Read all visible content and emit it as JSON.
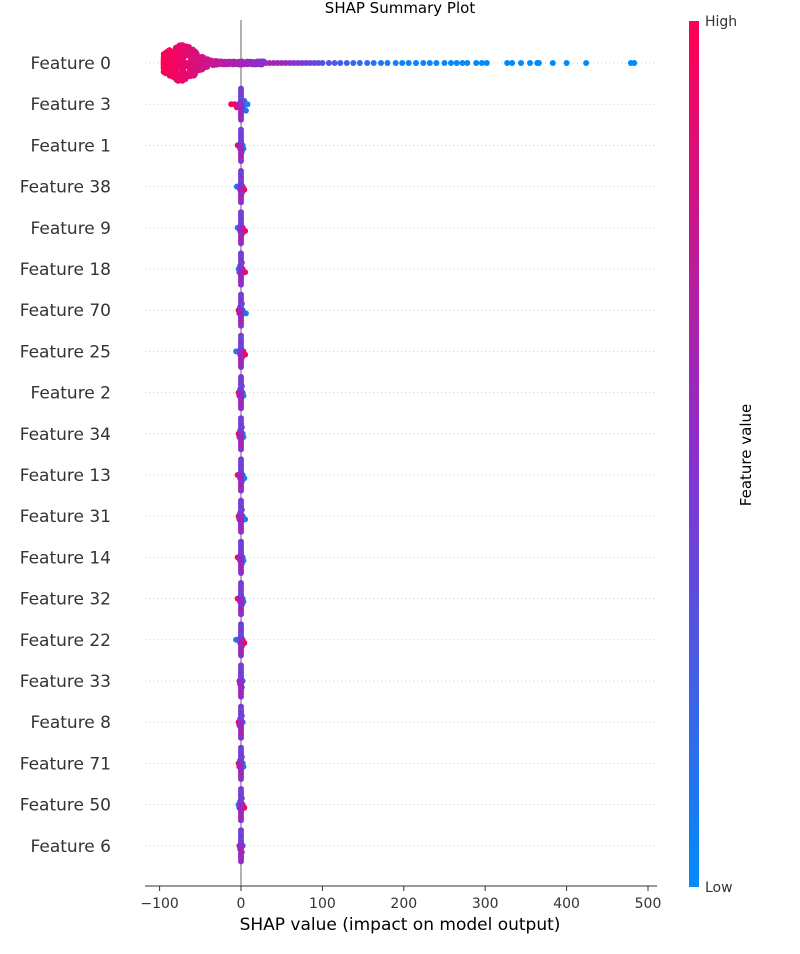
{
  "chart_data": {
    "type": "scatter",
    "subtype": "shap-beeswarm",
    "title": "SHAP Summary Plot",
    "xlabel": "SHAP value (impact on model output)",
    "ylabel": "",
    "xlim": [
      -115,
      515
    ],
    "xticks": [
      -100,
      0,
      100,
      200,
      300,
      400,
      500
    ],
    "xtick_labels": [
      "−100",
      "0",
      "100",
      "200",
      "300",
      "400",
      "500"
    ],
    "grid": false,
    "zero_line": true,
    "colorbar": {
      "title": "Feature value",
      "high_label": "High",
      "low_label": "Low",
      "high_color": "#ff0052",
      "low_color": "#008bfb"
    },
    "features": [
      {
        "name": "Feature 0",
        "points": [
          {
            "x": -75,
            "f": 1.0
          },
          {
            "x": -72,
            "f": 0.98
          },
          {
            "x": -68,
            "f": 0.97
          },
          {
            "x": -80,
            "f": 1.0
          },
          {
            "x": -85,
            "f": 0.99
          },
          {
            "x": -90,
            "f": 1.0
          },
          {
            "x": -65,
            "f": 0.96
          },
          {
            "x": -60,
            "f": 0.95
          },
          {
            "x": -55,
            "f": 0.94
          },
          {
            "x": -50,
            "f": 0.93
          },
          {
            "x": -45,
            "f": 0.92
          },
          {
            "x": -40,
            "f": 0.9
          },
          {
            "x": -35,
            "f": 0.89
          },
          {
            "x": -30,
            "f": 0.88
          },
          {
            "x": -25,
            "f": 0.87
          },
          {
            "x": -20,
            "f": 0.86
          },
          {
            "x": -15,
            "f": 0.84
          },
          {
            "x": -10,
            "f": 0.83
          },
          {
            "x": -5,
            "f": 0.82
          },
          {
            "x": 0,
            "f": 0.8
          },
          {
            "x": 5,
            "f": 0.78
          },
          {
            "x": 10,
            "f": 0.76
          },
          {
            "x": 15,
            "f": 0.74
          },
          {
            "x": 20,
            "f": 0.72
          },
          {
            "x": 25,
            "f": 0.7
          },
          {
            "x": 30,
            "f": 0.67
          },
          {
            "x": 35,
            "f": 0.65
          },
          {
            "x": 40,
            "f": 0.63
          },
          {
            "x": 45,
            "f": 0.6
          },
          {
            "x": 50,
            "f": 0.58
          },
          {
            "x": 55,
            "f": 0.55
          },
          {
            "x": 60,
            "f": 0.52
          },
          {
            "x": 65,
            "f": 0.5
          },
          {
            "x": 70,
            "f": 0.47
          },
          {
            "x": 75,
            "f": 0.45
          },
          {
            "x": 80,
            "f": 0.42
          },
          {
            "x": 85,
            "f": 0.4
          },
          {
            "x": 90,
            "f": 0.38
          },
          {
            "x": 95,
            "f": 0.35
          },
          {
            "x": 100,
            "f": 0.32
          },
          {
            "x": 108,
            "f": 0.3
          },
          {
            "x": 115,
            "f": 0.27
          },
          {
            "x": 122,
            "f": 0.25
          },
          {
            "x": 130,
            "f": 0.22
          },
          {
            "x": 138,
            "f": 0.2
          },
          {
            "x": 146,
            "f": 0.18
          },
          {
            "x": 155,
            "f": 0.15
          },
          {
            "x": 163,
            "f": 0.13
          },
          {
            "x": 172,
            "f": 0.1
          },
          {
            "x": 180,
            "f": 0.08
          },
          {
            "x": 190,
            "f": 0.06
          },
          {
            "x": 198,
            "f": 0.05
          },
          {
            "x": 206,
            "f": 0.04
          },
          {
            "x": 215,
            "f": 0.03
          },
          {
            "x": 224,
            "f": 0.03
          },
          {
            "x": 232,
            "f": 0.02
          },
          {
            "x": 240,
            "f": 0.02
          },
          {
            "x": 250,
            "f": 0.02
          },
          {
            "x": 258,
            "f": 0.01
          },
          {
            "x": 265,
            "f": 0.01
          },
          {
            "x": 272,
            "f": 0.01
          },
          {
            "x": 278,
            "f": 0.0
          },
          {
            "x": 289,
            "f": 0.0
          },
          {
            "x": 296,
            "f": 0.0
          },
          {
            "x": 302,
            "f": 0.0
          },
          {
            "x": 327,
            "f": 0.0
          },
          {
            "x": 333,
            "f": 0.0
          },
          {
            "x": 344,
            "f": 0.0
          },
          {
            "x": 355,
            "f": 0.0
          },
          {
            "x": 364,
            "f": 0.0
          },
          {
            "x": 366,
            "f": 0.0
          },
          {
            "x": 383,
            "f": 0.0
          },
          {
            "x": 400,
            "f": 0.0
          },
          {
            "x": 424,
            "f": 0.0
          },
          {
            "x": 479,
            "f": 0.0
          },
          {
            "x": 483,
            "f": 0.0
          }
        ]
      },
      {
        "name": "Feature 3",
        "points": [
          {
            "x": -12,
            "f": 1.0
          },
          {
            "x": -8,
            "f": 0.95
          },
          {
            "x": -5,
            "f": 0.9
          },
          {
            "x": -3,
            "f": 0.75
          },
          {
            "x": -1,
            "f": 0.6
          },
          {
            "x": 0,
            "f": 0.5
          },
          {
            "x": 1,
            "f": 0.45
          },
          {
            "x": 2,
            "f": 0.35
          },
          {
            "x": 3,
            "f": 0.3
          },
          {
            "x": 4,
            "f": 0.25
          },
          {
            "x": 6,
            "f": 0.15
          },
          {
            "x": 8,
            "f": 0.05
          }
        ]
      },
      {
        "name": "Feature 1",
        "points": [
          {
            "x": -4,
            "f": 0.95
          },
          {
            "x": -2,
            "f": 0.8
          },
          {
            "x": -1,
            "f": 0.6
          },
          {
            "x": 0,
            "f": 0.5
          },
          {
            "x": 1,
            "f": 0.35
          },
          {
            "x": 2,
            "f": 0.2
          },
          {
            "x": 3,
            "f": 0.1
          }
        ]
      },
      {
        "name": "Feature 38",
        "points": [
          {
            "x": -5,
            "f": 0.05
          },
          {
            "x": -3,
            "f": 0.2
          },
          {
            "x": -1,
            "f": 0.4
          },
          {
            "x": 0,
            "f": 0.5
          },
          {
            "x": 1,
            "f": 0.6
          },
          {
            "x": 2,
            "f": 0.8
          },
          {
            "x": 4,
            "f": 0.95
          }
        ]
      },
      {
        "name": "Feature 9",
        "points": [
          {
            "x": -4,
            "f": 0.05
          },
          {
            "x": -2,
            "f": 0.25
          },
          {
            "x": -1,
            "f": 0.45
          },
          {
            "x": 0,
            "f": 0.5
          },
          {
            "x": 1,
            "f": 0.65
          },
          {
            "x": 2,
            "f": 0.8
          },
          {
            "x": 5,
            "f": 0.95
          }
        ]
      },
      {
        "name": "Feature 18",
        "points": [
          {
            "x": -3,
            "f": 0.1
          },
          {
            "x": -2,
            "f": 0.3
          },
          {
            "x": -1,
            "f": 0.45
          },
          {
            "x": 0,
            "f": 0.5
          },
          {
            "x": 1,
            "f": 0.6
          },
          {
            "x": 2,
            "f": 0.75
          },
          {
            "x": 5,
            "f": 0.9
          }
        ]
      },
      {
        "name": "Feature 70",
        "points": [
          {
            "x": -3,
            "f": 0.9
          },
          {
            "x": -2,
            "f": 0.75
          },
          {
            "x": -1,
            "f": 0.6
          },
          {
            "x": 0,
            "f": 0.5
          },
          {
            "x": 1,
            "f": 0.4
          },
          {
            "x": 2,
            "f": 0.25
          },
          {
            "x": 6,
            "f": 0.1
          }
        ]
      },
      {
        "name": "Feature 25",
        "points": [
          {
            "x": -6,
            "f": 0.05
          },
          {
            "x": -3,
            "f": 0.2
          },
          {
            "x": -1,
            "f": 0.4
          },
          {
            "x": 0,
            "f": 0.5
          },
          {
            "x": 1,
            "f": 0.6
          },
          {
            "x": 3,
            "f": 0.8
          },
          {
            "x": 5,
            "f": 0.95
          }
        ]
      },
      {
        "name": "Feature 2",
        "points": [
          {
            "x": -3,
            "f": 0.9
          },
          {
            "x": -2,
            "f": 0.7
          },
          {
            "x": -1,
            "f": 0.6
          },
          {
            "x": 0,
            "f": 0.5
          },
          {
            "x": 1,
            "f": 0.35
          },
          {
            "x": 2,
            "f": 0.2
          },
          {
            "x": 3,
            "f": 0.1
          }
        ]
      },
      {
        "name": "Feature 34",
        "points": [
          {
            "x": -3,
            "f": 0.95
          },
          {
            "x": -2,
            "f": 0.75
          },
          {
            "x": -1,
            "f": 0.6
          },
          {
            "x": 0,
            "f": 0.5
          },
          {
            "x": 1,
            "f": 0.4
          },
          {
            "x": 2,
            "f": 0.25
          },
          {
            "x": 3,
            "f": 0.1
          }
        ]
      },
      {
        "name": "Feature 13",
        "points": [
          {
            "x": -4,
            "f": 0.95
          },
          {
            "x": -2,
            "f": 0.75
          },
          {
            "x": -1,
            "f": 0.6
          },
          {
            "x": 0,
            "f": 0.5
          },
          {
            "x": 1,
            "f": 0.4
          },
          {
            "x": 2,
            "f": 0.25
          },
          {
            "x": 4,
            "f": 0.05
          }
        ]
      },
      {
        "name": "Feature 31",
        "points": [
          {
            "x": -3,
            "f": 0.9
          },
          {
            "x": -2,
            "f": 0.75
          },
          {
            "x": -1,
            "f": 0.6
          },
          {
            "x": 0,
            "f": 0.5
          },
          {
            "x": 1,
            "f": 0.4
          },
          {
            "x": 2,
            "f": 0.25
          },
          {
            "x": 5,
            "f": 0.1
          }
        ]
      },
      {
        "name": "Feature 14",
        "points": [
          {
            "x": -4,
            "f": 0.95
          },
          {
            "x": -2,
            "f": 0.75
          },
          {
            "x": -1,
            "f": 0.6
          },
          {
            "x": 0,
            "f": 0.5
          },
          {
            "x": 1,
            "f": 0.35
          },
          {
            "x": 2,
            "f": 0.25
          },
          {
            "x": 3,
            "f": 0.1
          }
        ]
      },
      {
        "name": "Feature 32",
        "points": [
          {
            "x": -4,
            "f": 0.95
          },
          {
            "x": -2,
            "f": 0.75
          },
          {
            "x": -1,
            "f": 0.6
          },
          {
            "x": 0,
            "f": 0.5
          },
          {
            "x": 1,
            "f": 0.4
          },
          {
            "x": 2,
            "f": 0.25
          },
          {
            "x": 3,
            "f": 0.1
          }
        ]
      },
      {
        "name": "Feature 22",
        "points": [
          {
            "x": -6,
            "f": 0.05
          },
          {
            "x": -3,
            "f": 0.2
          },
          {
            "x": -1,
            "f": 0.4
          },
          {
            "x": 0,
            "f": 0.5
          },
          {
            "x": 1,
            "f": 0.6
          },
          {
            "x": 2,
            "f": 0.8
          },
          {
            "x": 4,
            "f": 0.95
          }
        ]
      },
      {
        "name": "Feature 33",
        "points": [
          {
            "x": -2,
            "f": 0.9
          },
          {
            "x": -1,
            "f": 0.7
          },
          {
            "x": 0,
            "f": 0.5
          },
          {
            "x": 1,
            "f": 0.35
          },
          {
            "x": 2,
            "f": 0.2
          }
        ]
      },
      {
        "name": "Feature 8",
        "points": [
          {
            "x": -3,
            "f": 0.95
          },
          {
            "x": -2,
            "f": 0.75
          },
          {
            "x": -1,
            "f": 0.6
          },
          {
            "x": 0,
            "f": 0.5
          },
          {
            "x": 1,
            "f": 0.35
          },
          {
            "x": 2,
            "f": 0.2
          }
        ]
      },
      {
        "name": "Feature 71",
        "points": [
          {
            "x": -3,
            "f": 0.9
          },
          {
            "x": -2,
            "f": 0.75
          },
          {
            "x": -1,
            "f": 0.6
          },
          {
            "x": 0,
            "f": 0.5
          },
          {
            "x": 1,
            "f": 0.4
          },
          {
            "x": 2,
            "f": 0.25
          },
          {
            "x": 3,
            "f": 0.1
          }
        ]
      },
      {
        "name": "Feature 50",
        "points": [
          {
            "x": -3,
            "f": 0.1
          },
          {
            "x": -2,
            "f": 0.3
          },
          {
            "x": -1,
            "f": 0.45
          },
          {
            "x": 0,
            "f": 0.5
          },
          {
            "x": 1,
            "f": 0.6
          },
          {
            "x": 2,
            "f": 0.75
          },
          {
            "x": 4,
            "f": 0.95
          }
        ]
      },
      {
        "name": "Feature 6",
        "points": [
          {
            "x": -2,
            "f": 0.6
          },
          {
            "x": -1,
            "f": 0.55
          },
          {
            "x": 0,
            "f": 0.5
          },
          {
            "x": 1,
            "f": 0.45
          },
          {
            "x": 2,
            "f": 0.4
          }
        ]
      }
    ]
  }
}
